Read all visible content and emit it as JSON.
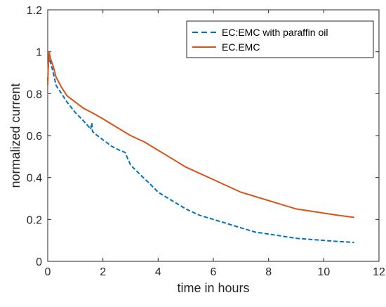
{
  "chart_data": {
    "type": "line",
    "title": "",
    "xlabel": "time in hours",
    "ylabel": "normalized current",
    "xlim": [
      0,
      12
    ],
    "ylim": [
      0,
      1.2
    ],
    "xticks": [
      "0",
      "2",
      "4",
      "6",
      "8",
      "10",
      "12"
    ],
    "yticks": [
      "0",
      "0.2",
      "0.4",
      "0.6",
      "0.8",
      "1",
      "1.2"
    ],
    "grid": false,
    "legend_position": "top-right",
    "series": [
      {
        "name": "EC:EMC with paraffin oil",
        "color": "#0072BD",
        "style": "dashed",
        "x": [
          0.0,
          0.02,
          0.05,
          0.1,
          0.2,
          0.3,
          0.5,
          0.7,
          1.0,
          1.3,
          1.5,
          1.55,
          1.6,
          1.62,
          1.7,
          2.0,
          2.3,
          2.6,
          2.8,
          3.0,
          3.3,
          3.7,
          4.0,
          4.5,
          5.0,
          5.5,
          6.0,
          6.5,
          7.0,
          7.5,
          8.0,
          8.5,
          9.0,
          9.5,
          10.0,
          10.5,
          11.1
        ],
        "values": [
          0.86,
          0.93,
          0.97,
          0.95,
          0.9,
          0.84,
          0.8,
          0.76,
          0.71,
          0.67,
          0.64,
          0.63,
          0.66,
          0.62,
          0.61,
          0.58,
          0.55,
          0.53,
          0.52,
          0.46,
          0.42,
          0.37,
          0.33,
          0.29,
          0.25,
          0.22,
          0.2,
          0.18,
          0.16,
          0.14,
          0.13,
          0.12,
          0.11,
          0.105,
          0.1,
          0.095,
          0.09
        ]
      },
      {
        "name": "EC.EMC",
        "color": "#D95319",
        "style": "solid",
        "x": [
          0.0,
          0.02,
          0.05,
          0.08,
          0.12,
          0.2,
          0.3,
          0.5,
          0.7,
          1.0,
          1.3,
          1.6,
          2.0,
          2.5,
          3.0,
          3.5,
          4.0,
          4.5,
          5.0,
          5.5,
          6.0,
          6.5,
          7.0,
          7.5,
          8.0,
          8.5,
          9.0,
          9.5,
          10.0,
          10.5,
          11.1
        ],
        "values": [
          0.84,
          0.94,
          1.0,
          0.98,
          0.96,
          0.93,
          0.88,
          0.83,
          0.79,
          0.76,
          0.73,
          0.71,
          0.68,
          0.64,
          0.6,
          0.57,
          0.53,
          0.49,
          0.45,
          0.42,
          0.39,
          0.36,
          0.33,
          0.31,
          0.29,
          0.27,
          0.25,
          0.24,
          0.23,
          0.22,
          0.21
        ]
      }
    ]
  }
}
